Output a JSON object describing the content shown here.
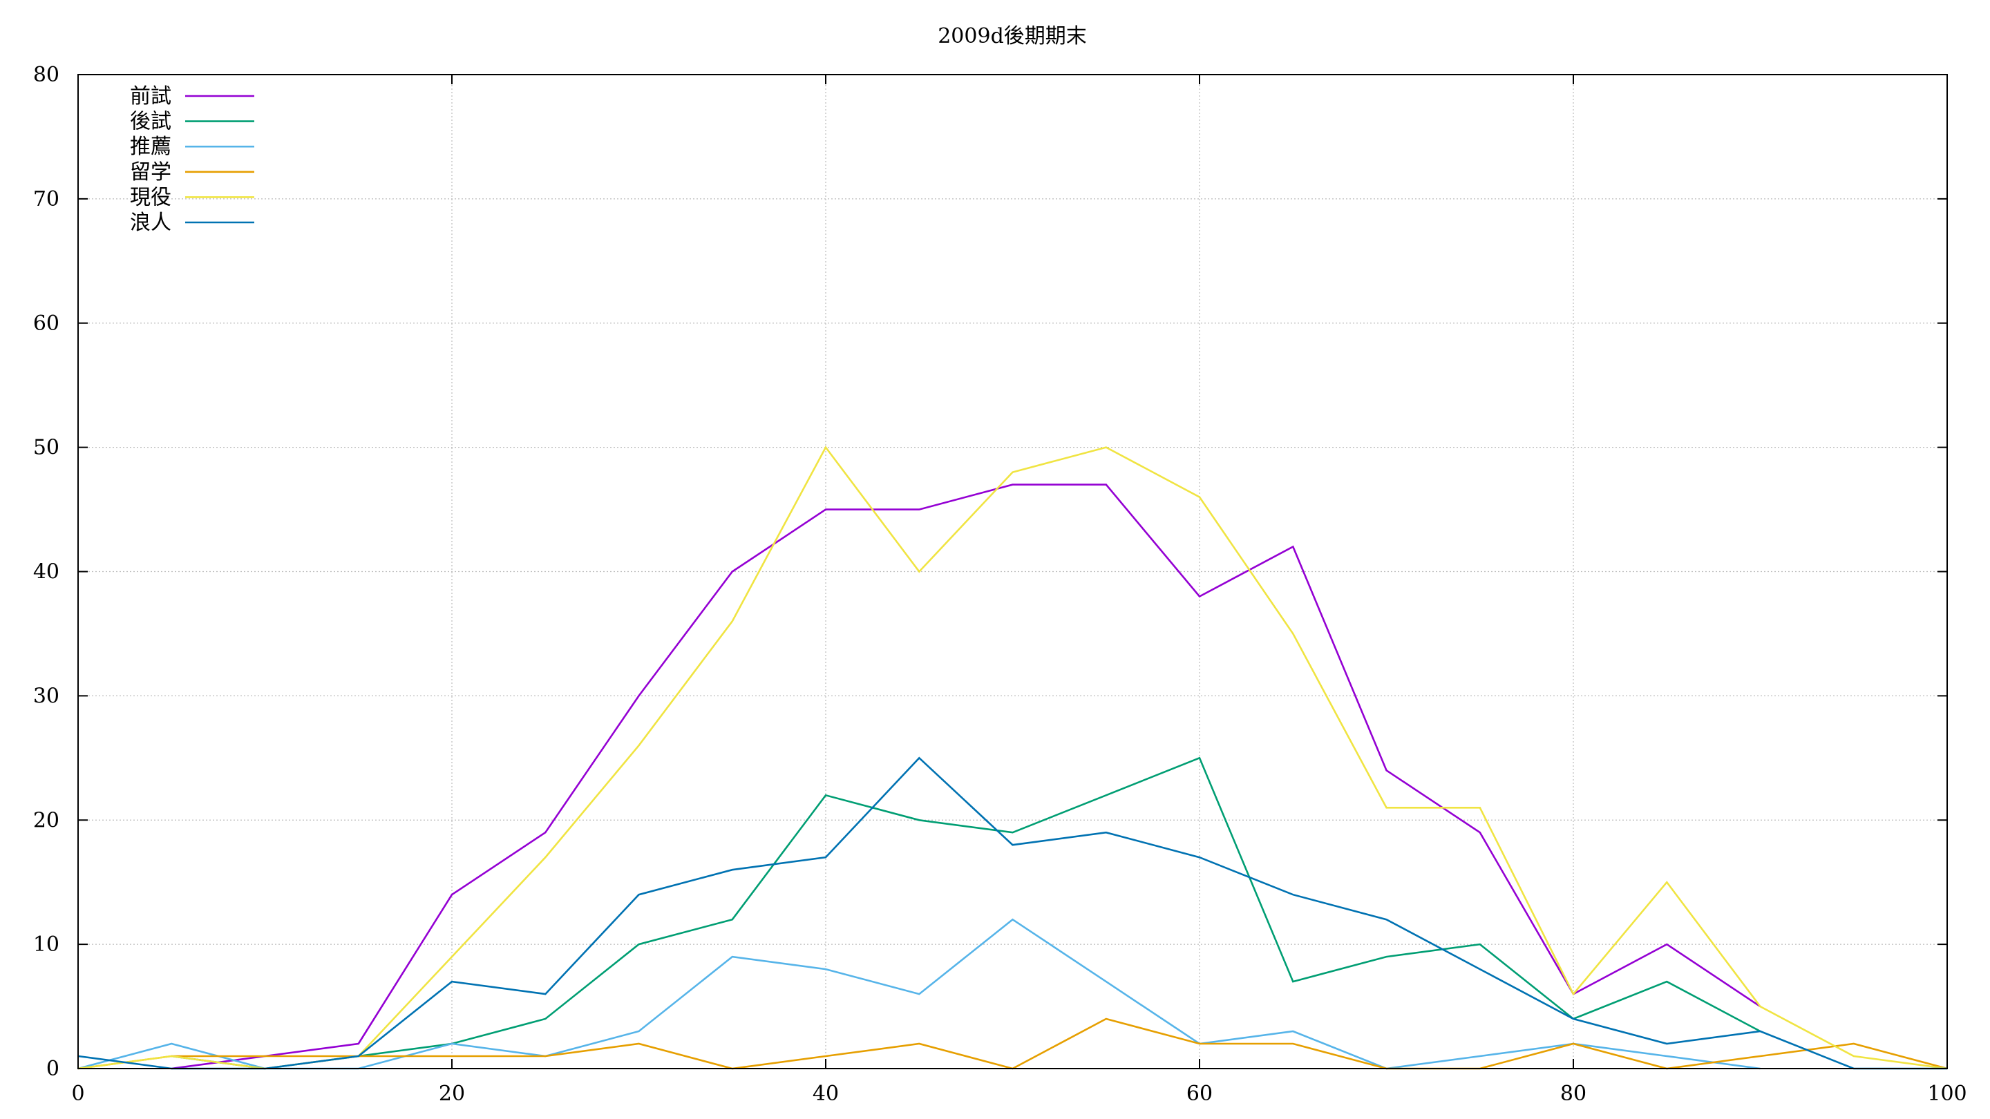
{
  "chart_data": {
    "type": "line",
    "title": "2009d後期期末",
    "xlabel": "",
    "ylabel": "",
    "xlim": [
      0,
      100
    ],
    "ylim": [
      0,
      80
    ],
    "x_ticks": [
      "0",
      "20",
      "40",
      "60",
      "80",
      "100"
    ],
    "y_ticks": [
      "0",
      "10",
      "20",
      "30",
      "40",
      "50",
      "60",
      "70",
      "80"
    ],
    "grid": true,
    "legend_position": "top-left",
    "series": [
      {
        "name": "前試",
        "color": "#9400d3",
        "x": [
          5,
          10,
          15,
          20,
          25,
          30,
          35,
          40,
          45,
          50,
          55,
          60,
          65,
          70,
          75,
          80,
          85,
          90
        ],
        "y": [
          0,
          1,
          2,
          14,
          19,
          30,
          40,
          45,
          45,
          47,
          47,
          38,
          42,
          24,
          19,
          6,
          10,
          5
        ]
      },
      {
        "name": "後試",
        "color": "#009e73",
        "x": [
          5,
          10,
          15,
          20,
          25,
          30,
          35,
          40,
          45,
          50,
          55,
          60,
          65,
          70,
          75,
          80,
          85,
          90
        ],
        "y": [
          1,
          0,
          1,
          2,
          4,
          10,
          12,
          22,
          20,
          19,
          22,
          25,
          7,
          9,
          10,
          4,
          7,
          3
        ]
      },
      {
        "name": "推薦",
        "color": "#56b4e9",
        "x": [
          0,
          5,
          10,
          15,
          20,
          25,
          30,
          35,
          40,
          45,
          50,
          55,
          60,
          65,
          70,
          75,
          80,
          85,
          90
        ],
        "y": [
          0,
          2,
          0,
          0,
          2,
          1,
          3,
          9,
          8,
          6,
          12,
          7,
          2,
          3,
          0,
          1,
          2,
          1,
          0
        ]
      },
      {
        "name": "留学",
        "color": "#e69f00",
        "x": [
          0,
          5,
          10,
          15,
          20,
          25,
          30,
          35,
          40,
          45,
          50,
          55,
          60,
          65,
          70,
          75,
          80,
          85,
          90,
          95,
          100
        ],
        "y": [
          0,
          1,
          1,
          1,
          1,
          1,
          2,
          0,
          1,
          2,
          0,
          4,
          2,
          2,
          0,
          0,
          2,
          0,
          1,
          2,
          0
        ]
      },
      {
        "name": "現役",
        "color": "#f0e442",
        "x": [
          0,
          5,
          10,
          15,
          20,
          25,
          30,
          35,
          40,
          45,
          50,
          55,
          60,
          65,
          70,
          75,
          80,
          85,
          90,
          95,
          100
        ],
        "y": [
          0,
          1,
          0,
          1,
          9,
          17,
          26,
          36,
          50,
          40,
          48,
          50,
          46,
          35,
          21,
          21,
          6,
          15,
          5,
          1,
          0
        ]
      },
      {
        "name": "浪人",
        "color": "#0072b2",
        "x": [
          0,
          5,
          10,
          15,
          20,
          25,
          30,
          35,
          40,
          45,
          50,
          55,
          60,
          65,
          70,
          75,
          80,
          85,
          90,
          95,
          100
        ],
        "y": [
          1,
          0,
          0,
          1,
          7,
          6,
          14,
          16,
          17,
          25,
          18,
          19,
          17,
          14,
          12,
          8,
          4,
          2,
          3,
          0,
          0
        ]
      }
    ]
  }
}
